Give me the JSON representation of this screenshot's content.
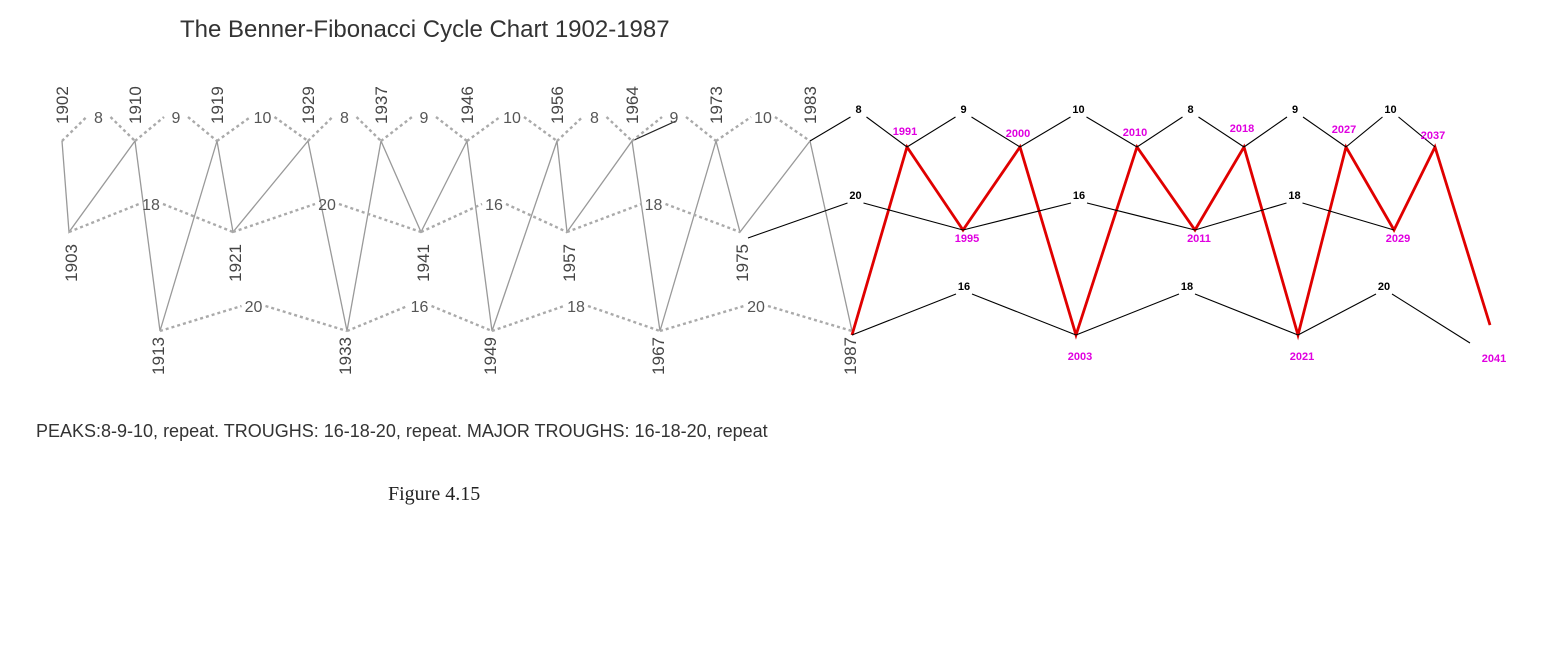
{
  "chart_data": {
    "type": "line",
    "title": "The Benner-Fibonacci Cycle Chart 1902-1987",
    "caption": "PEAKS:8-9-10, repeat. TROUGHS: 16-18-20, repeat. MAJOR TROUGHS: 16-18-20, repeat",
    "partial_caption": "Figure 4.15",
    "x_axis": {
      "type": "time",
      "unit": "year",
      "range": [
        1902,
        2041
      ],
      "printed": false
    },
    "levels": [
      "peak",
      "trough",
      "major-trough"
    ],
    "historical": {
      "peaks": [
        1902,
        1910,
        1919,
        1929,
        1937,
        1946,
        1956,
        1964,
        1973,
        1983
      ],
      "troughs": [
        1903,
        1921,
        1941,
        1957,
        1975
      ],
      "major_troughs": [
        1913,
        1933,
        1949,
        1967,
        1987
      ],
      "zigzag_path": [
        1902,
        1903,
        1910,
        1913,
        1919,
        1921,
        1929,
        1933,
        1937,
        1941,
        1946,
        1949,
        1956,
        1957,
        1964,
        1967,
        1973,
        1975,
        1983,
        1987
      ],
      "peak_intervals": [
        {
          "label": "8",
          "from": 1902,
          "to": 1910
        },
        {
          "label": "9",
          "from": 1910,
          "to": 1919
        },
        {
          "label": "10",
          "from": 1919,
          "to": 1929
        },
        {
          "label": "8",
          "from": 1929,
          "to": 1937
        },
        {
          "label": "9",
          "from": 1937,
          "to": 1946
        },
        {
          "label": "10",
          "from": 1946,
          "to": 1956
        },
        {
          "label": "8",
          "from": 1956,
          "to": 1964
        },
        {
          "label": "9",
          "from": 1964,
          "to": 1973
        },
        {
          "label": "10",
          "from": 1973,
          "to": 1983
        }
      ],
      "trough_intervals": [
        {
          "label": "18",
          "from": 1903,
          "to": 1921
        },
        {
          "label": "20",
          "from": 1921,
          "to": 1941
        },
        {
          "label": "16",
          "from": 1941,
          "to": 1957
        },
        {
          "label": "18",
          "from": 1957,
          "to": 1975
        }
      ],
      "major_trough_intervals": [
        {
          "label": "20",
          "from": 1913,
          "to": 1933
        },
        {
          "label": "16",
          "from": 1933,
          "to": 1949
        },
        {
          "label": "18",
          "from": 1949,
          "to": 1967
        },
        {
          "label": "20",
          "from": 1967,
          "to": 1987
        }
      ]
    },
    "projection": {
      "peaks": [
        1991,
        2000,
        2010,
        2018,
        2027,
        2037
      ],
      "troughs": [
        1995,
        2011,
        2029
      ],
      "major_troughs": [
        2003,
        2021,
        2041
      ],
      "zigzag_path": [
        1987,
        1991,
        1995,
        2000,
        2003,
        2010,
        2011,
        2018,
        2021,
        2027,
        2029,
        2037,
        2041
      ],
      "peak_intervals": [
        {
          "label": "8",
          "from": 1983,
          "to": 1991
        },
        {
          "label": "9",
          "from": 1991,
          "to": 2000
        },
        {
          "label": "10",
          "from": 2000,
          "to": 2010
        },
        {
          "label": "8",
          "from": 2010,
          "to": 2018
        },
        {
          "label": "9",
          "from": 2018,
          "to": 2027
        },
        {
          "label": "10",
          "from": 2027,
          "to": 2037
        }
      ],
      "trough_intervals": [
        {
          "label": "20",
          "from": 1975,
          "to": 1995
        },
        {
          "label": "16",
          "from": 1995,
          "to": 2011
        },
        {
          "label": "18",
          "from": 2011,
          "to": 2029
        }
      ],
      "major_trough_intervals": [
        {
          "label": "16",
          "from": 1987,
          "to": 2003
        },
        {
          "label": "18",
          "from": 2003,
          "to": 2021
        },
        {
          "label": "20",
          "from": 2021,
          "to": 2041
        }
      ]
    },
    "grid": false,
    "legend": "none",
    "colors": {
      "historical_line": "#999999",
      "historical_dotted": "#aaaaaa",
      "projection_line": "#000000",
      "projection_zigzag": "#e00000",
      "projection_year_label": "#e000e0",
      "text": "#333333"
    }
  }
}
